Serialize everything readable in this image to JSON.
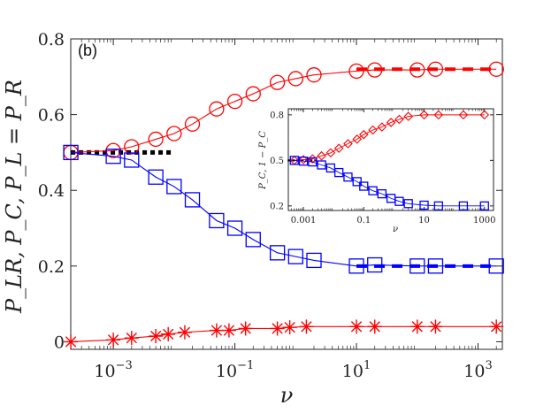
{
  "chart_data": {
    "type": "line",
    "panel_label": "(b)",
    "xlabel": "ν",
    "ylabel": "P_LR, P_C, P_L = P_R",
    "xscale": "log",
    "xlim_log10": [
      -3.7,
      3.4
    ],
    "ylim": [
      -0.02,
      0.8
    ],
    "x_ticks": [
      {
        "value": 0.001,
        "label": "10",
        "exp": "−3"
      },
      {
        "value": 0.1,
        "label": "10",
        "exp": "−1"
      },
      {
        "value": 10,
        "label": "10",
        "exp": "1"
      },
      {
        "value": 1000,
        "label": "10",
        "exp": "3"
      }
    ],
    "y_ticks": [
      {
        "value": 0,
        "label": "0"
      },
      {
        "value": 0.2,
        "label": "0.2"
      },
      {
        "value": 0.4,
        "label": "0.4"
      },
      {
        "value": 0.6,
        "label": "0.6"
      },
      {
        "value": 0.8,
        "label": "0.8"
      }
    ],
    "series": [
      {
        "name": "P_LR",
        "color": "#ff0000",
        "marker": "circle",
        "x": [
          0.0002,
          0.001,
          0.002,
          0.005,
          0.01,
          0.02,
          0.05,
          0.1,
          0.2,
          0.5,
          1,
          2,
          10,
          20,
          100,
          200,
          2000
        ],
        "y": [
          0.5,
          0.505,
          0.515,
          0.535,
          0.55,
          0.575,
          0.615,
          0.635,
          0.655,
          0.685,
          0.695,
          0.705,
          0.715,
          0.718,
          0.718,
          0.72,
          0.72
        ]
      },
      {
        "name": "P_C",
        "color": "#0000ff",
        "marker": "square",
        "x": [
          0.0002,
          0.001,
          0.002,
          0.005,
          0.01,
          0.02,
          0.05,
          0.1,
          0.2,
          0.5,
          1,
          2,
          10,
          20,
          100,
          200,
          2000
        ],
        "y": [
          0.5,
          0.49,
          0.48,
          0.435,
          0.41,
          0.375,
          0.32,
          0.3,
          0.27,
          0.235,
          0.225,
          0.215,
          0.2,
          0.203,
          0.2,
          0.2,
          0.2
        ]
      },
      {
        "name": "P_L = P_R",
        "color": "#ff0000",
        "marker": "star",
        "x": [
          0.0002,
          0.001,
          0.002,
          0.005,
          0.008,
          0.015,
          0.05,
          0.08,
          0.15,
          0.5,
          0.8,
          1.5,
          10,
          20,
          100,
          200,
          2000
        ],
        "y": [
          0.0,
          0.005,
          0.01,
          0.015,
          0.02,
          0.025,
          0.03,
          0.03,
          0.035,
          0.035,
          0.038,
          0.04,
          0.04,
          0.04,
          0.04,
          0.04,
          0.04
        ]
      }
    ],
    "reference_line": {
      "y": 0.5,
      "x_from": 0.0002,
      "x_to": 0.01,
      "color": "#000000",
      "style": "dotted"
    },
    "fit_segments": [
      {
        "color": "#ff0000",
        "y": 0.72,
        "x_from": 10,
        "x_to": 2000
      },
      {
        "color": "#0000ff",
        "y": 0.2,
        "x_from": 10,
        "x_to": 2000
      }
    ],
    "inset": {
      "xscale": "log",
      "xlim_log10": [
        -3.5,
        3.3
      ],
      "ylim": [
        0.17,
        0.84
      ],
      "xlabel": "ν",
      "ylabel": "P_C, 1 − P_C",
      "x_ticks": [
        {
          "value": 0.001,
          "label": "0.001"
        },
        {
          "value": 0.1,
          "label": "0.1"
        },
        {
          "value": 10,
          "label": "10"
        },
        {
          "value": 1000,
          "label": "1000"
        }
      ],
      "y_ticks": [
        {
          "value": 0.2,
          "label": "0.2"
        },
        {
          "value": 0.5,
          "label": "0.5"
        },
        {
          "value": 0.8,
          "label": "0.8"
        }
      ],
      "series": [
        {
          "name": "1 − P_C",
          "color": "#ff0000",
          "marker": "diamond",
          "x": [
            0.0005,
            0.001,
            0.002,
            0.004,
            0.008,
            0.015,
            0.03,
            0.06,
            0.1,
            0.2,
            0.4,
            0.8,
            1.5,
            3,
            10,
            30,
            200,
            1000
          ],
          "y": [
            0.5,
            0.505,
            0.51,
            0.53,
            0.55,
            0.58,
            0.61,
            0.64,
            0.67,
            0.7,
            0.72,
            0.75,
            0.77,
            0.79,
            0.8,
            0.8,
            0.8,
            0.8
          ]
        },
        {
          "name": "P_C",
          "color": "#0000ff",
          "marker": "square",
          "x": [
            0.0005,
            0.001,
            0.002,
            0.004,
            0.008,
            0.015,
            0.03,
            0.06,
            0.1,
            0.2,
            0.4,
            0.8,
            1.5,
            3,
            10,
            30,
            200,
            1000
          ],
          "y": [
            0.5,
            0.495,
            0.49,
            0.47,
            0.45,
            0.42,
            0.39,
            0.36,
            0.33,
            0.3,
            0.28,
            0.25,
            0.23,
            0.215,
            0.205,
            0.2,
            0.2,
            0.2
          ]
        }
      ],
      "reference_line": {
        "y": 0.5,
        "x_from": 0.0003,
        "x_to": 0.003,
        "color": "#000000",
        "style": "dotted"
      }
    }
  }
}
